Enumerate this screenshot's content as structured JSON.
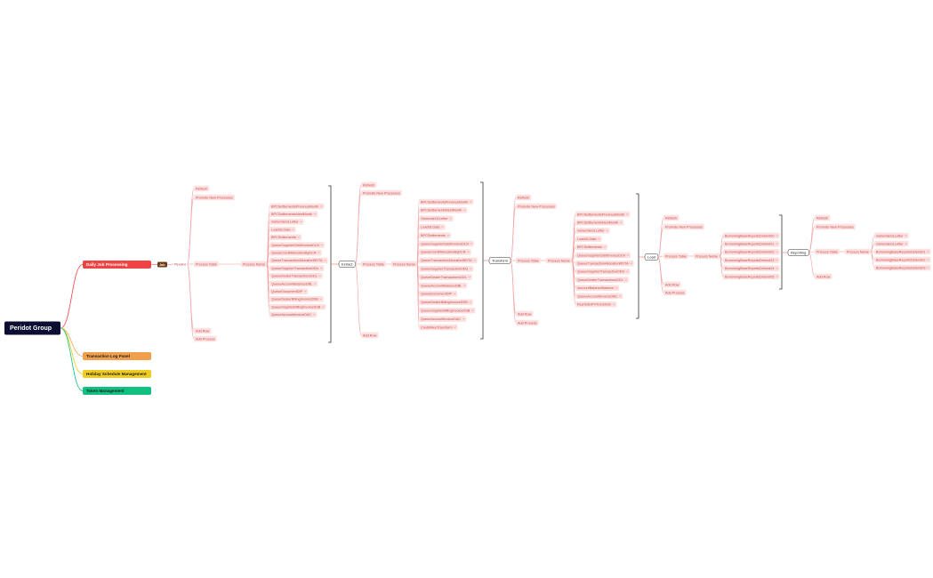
{
  "root": "Peridot Group",
  "branches": [
    "Daily Job Processing",
    "Transaction Log Panel",
    "Holiday Schedule Management",
    "Token Management"
  ],
  "job_tag": "Job",
  "stages": [
    {
      "hub": "Pipeline",
      "actions_top": [
        "Refresh",
        "Promote New Processes"
      ],
      "table": "Process Table",
      "name": "Process Name",
      "items": [
        "BPCSettlementsPreviousMonth",
        "BPCSettlementsNextMonth",
        "GenerateGLLetter",
        "LoadGLData",
        "BPCSettlements",
        "QueueSupplierDebitInvoiceDLN",
        "QueueCreditAllocationByDCR",
        "QueueTransactionAllocationRDTA",
        "QueueSupplierTransactionDDU",
        "QueueDealerTransactionsDDL",
        "QueueAccountBalanceDBL",
        "QueueDocumentDIP",
        "QueueDealerBillingInvoiceDDB",
        "QueueSupplierBillingInvoiceDSB",
        "QueueAccountInvoiceDAC"
      ],
      "actions_bottom": [
        "Add Row",
        "Add Process"
      ]
    },
    {
      "hub": "Extract",
      "actions_top": [
        "Refresh",
        "Promote New Processes"
      ],
      "table": "Process Table",
      "name": "Process Name",
      "items": [
        "BPCSettlementsPreviousMonth",
        "BPCSettlementsNextMonth",
        "GenerateGLLetter",
        "LoadGLData",
        "BPCSettlements",
        "QueueSupplierDebitInvoiceDLN",
        "QueueCreditAllocationByDCR",
        "QueueTransactionAllocationRDTA",
        "QueueSupplierTransactionDDU",
        "QueueDealerTransactionsDDL",
        "QueueAccountBalanceDBL",
        "QueueDocumentDIP",
        "QueueDealerBillingInvoiceDDB",
        "QueueSupplierBillingInvoiceDSB",
        "QueueAccountInvoiceDAC",
        "CreditAllocTransform"
      ],
      "actions_bottom": [
        "Add Row"
      ]
    },
    {
      "hub": "Transform",
      "actions_top": [
        "Refresh",
        "Promote New Processes"
      ],
      "table": "Process Table",
      "name": "Process Name",
      "items": [
        "BPCSettlementsPreviousMonth",
        "BPCSettlementsNextMonth",
        "GenerateGLLetter",
        "LoadGLData",
        "BPCSettlements",
        "QueueSupplierDebitInvoiceDLN",
        "QueueTransactionAllocationRDTA",
        "QueueSupplierTransactionDDU",
        "QueueDealerTransactionsDDL",
        "AccountBalanceBalance",
        "QueueAccountInvoiceDAC",
        "ReaTollerPVTransform"
      ],
      "actions_bottom": [
        "Add Row",
        "Add Process"
      ]
    },
    {
      "hub": "Load",
      "actions_top": [
        "Refresh",
        "Promote New Processes"
      ],
      "table": "Process Table",
      "name": "Process Name",
      "items": [
        "BorrowingBaseReportsDefund00",
        "BorrowingBaseReportsDefund01",
        "BorrowingBaseReportsDefund02",
        "BorrowingBaseReportsDefund03",
        "BorrowingBaseReportsDefund04",
        "BorrowingBaseReportsDefund05"
      ],
      "actions_bottom": [
        "Add Row",
        "Add Process"
      ]
    },
    {
      "hub": "Reporting",
      "actions_top": [
        "Refresh",
        "Promote New Processes"
      ],
      "table": "Process Table",
      "name": "Process Name",
      "items": [
        "GenerateGLLetter",
        "GenerateGLLetter",
        "BorrowingBaseReportsDefund01",
        "BorrowingBaseReportsDefund02",
        "BorrowingBaseReportsDefund03"
      ],
      "actions_bottom": [
        "Add Row"
      ]
    }
  ]
}
